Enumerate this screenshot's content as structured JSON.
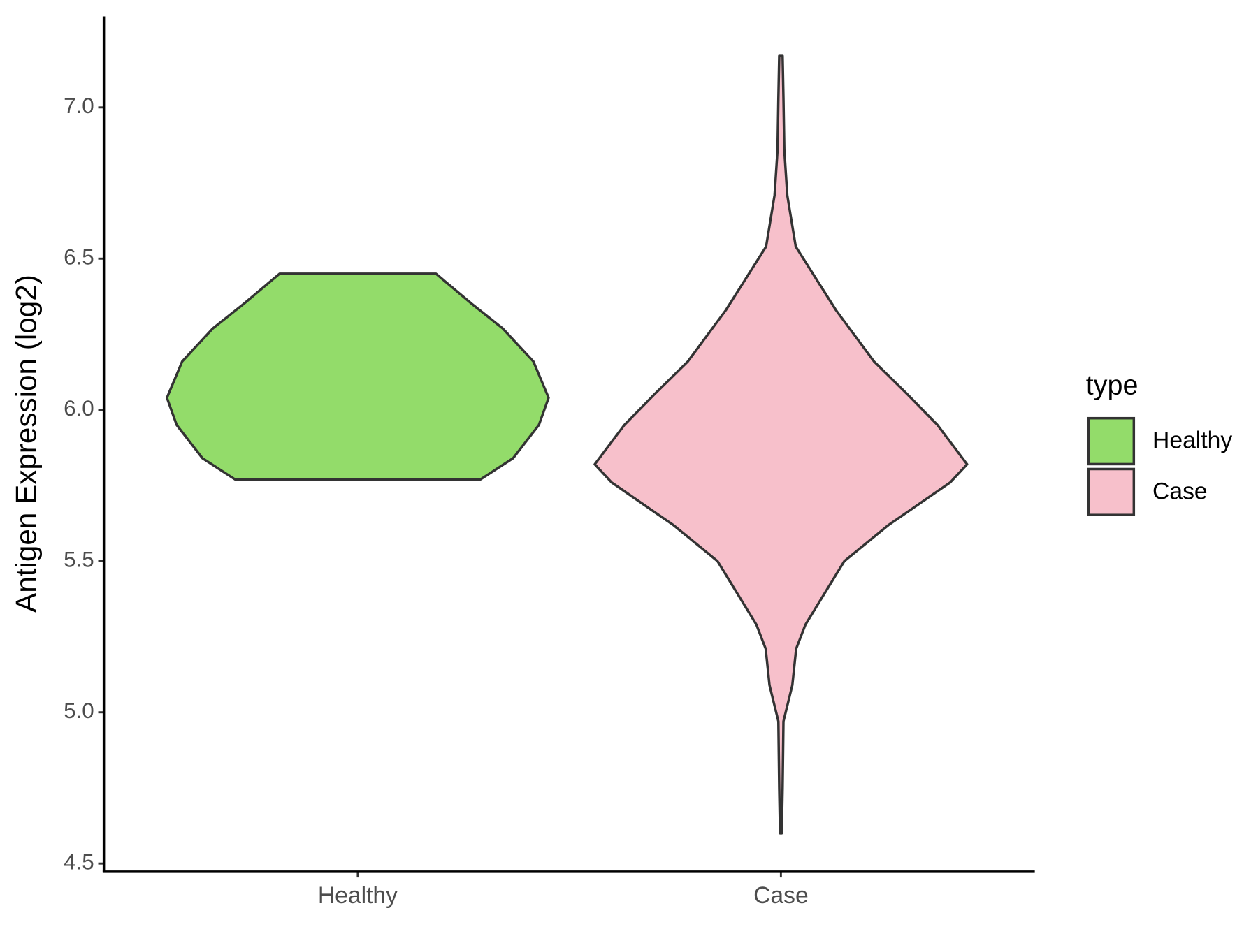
{
  "chart_data": {
    "type": "violin",
    "y_label": "Antigen Expression (log2)",
    "categories": [
      "Healthy",
      "Case"
    ],
    "series": [
      {
        "name": "Healthy",
        "color": "#93dc6a",
        "y": [
          5.77,
          5.84,
          5.95,
          6.04,
          6.16,
          6.27,
          6.35,
          6.45
        ],
        "width": [
          0.29,
          0.367,
          0.428,
          0.451,
          0.415,
          0.342,
          0.27,
          0.185
        ]
      },
      {
        "name": "Case",
        "color": "#f7c0cb",
        "y": [
          4.6,
          4.75,
          4.97,
          5.09,
          5.21,
          5.29,
          5.5,
          5.62,
          5.76,
          5.82,
          5.95,
          6.05,
          6.16,
          6.33,
          6.54,
          6.71,
          6.86,
          7.03,
          7.17
        ],
        "width": [
          0.002,
          0.004,
          0.006,
          0.027,
          0.036,
          0.058,
          0.15,
          0.255,
          0.4,
          0.44,
          0.37,
          0.3,
          0.22,
          0.13,
          0.035,
          0.015,
          0.008,
          0.006,
          0.004
        ]
      }
    ],
    "ylim": [
      4.473,
      7.301
    ],
    "yticks": [
      {
        "value": 4.5,
        "label": "4.5"
      },
      {
        "value": 5,
        "label": "5.0"
      },
      {
        "value": 5.5,
        "label": "5.5"
      },
      {
        "value": 6,
        "label": "6.0"
      },
      {
        "value": 6.5,
        "label": "6.5"
      },
      {
        "value": 7,
        "label": "7.0"
      }
    ],
    "legend_title": "type",
    "legend_position": "right"
  }
}
